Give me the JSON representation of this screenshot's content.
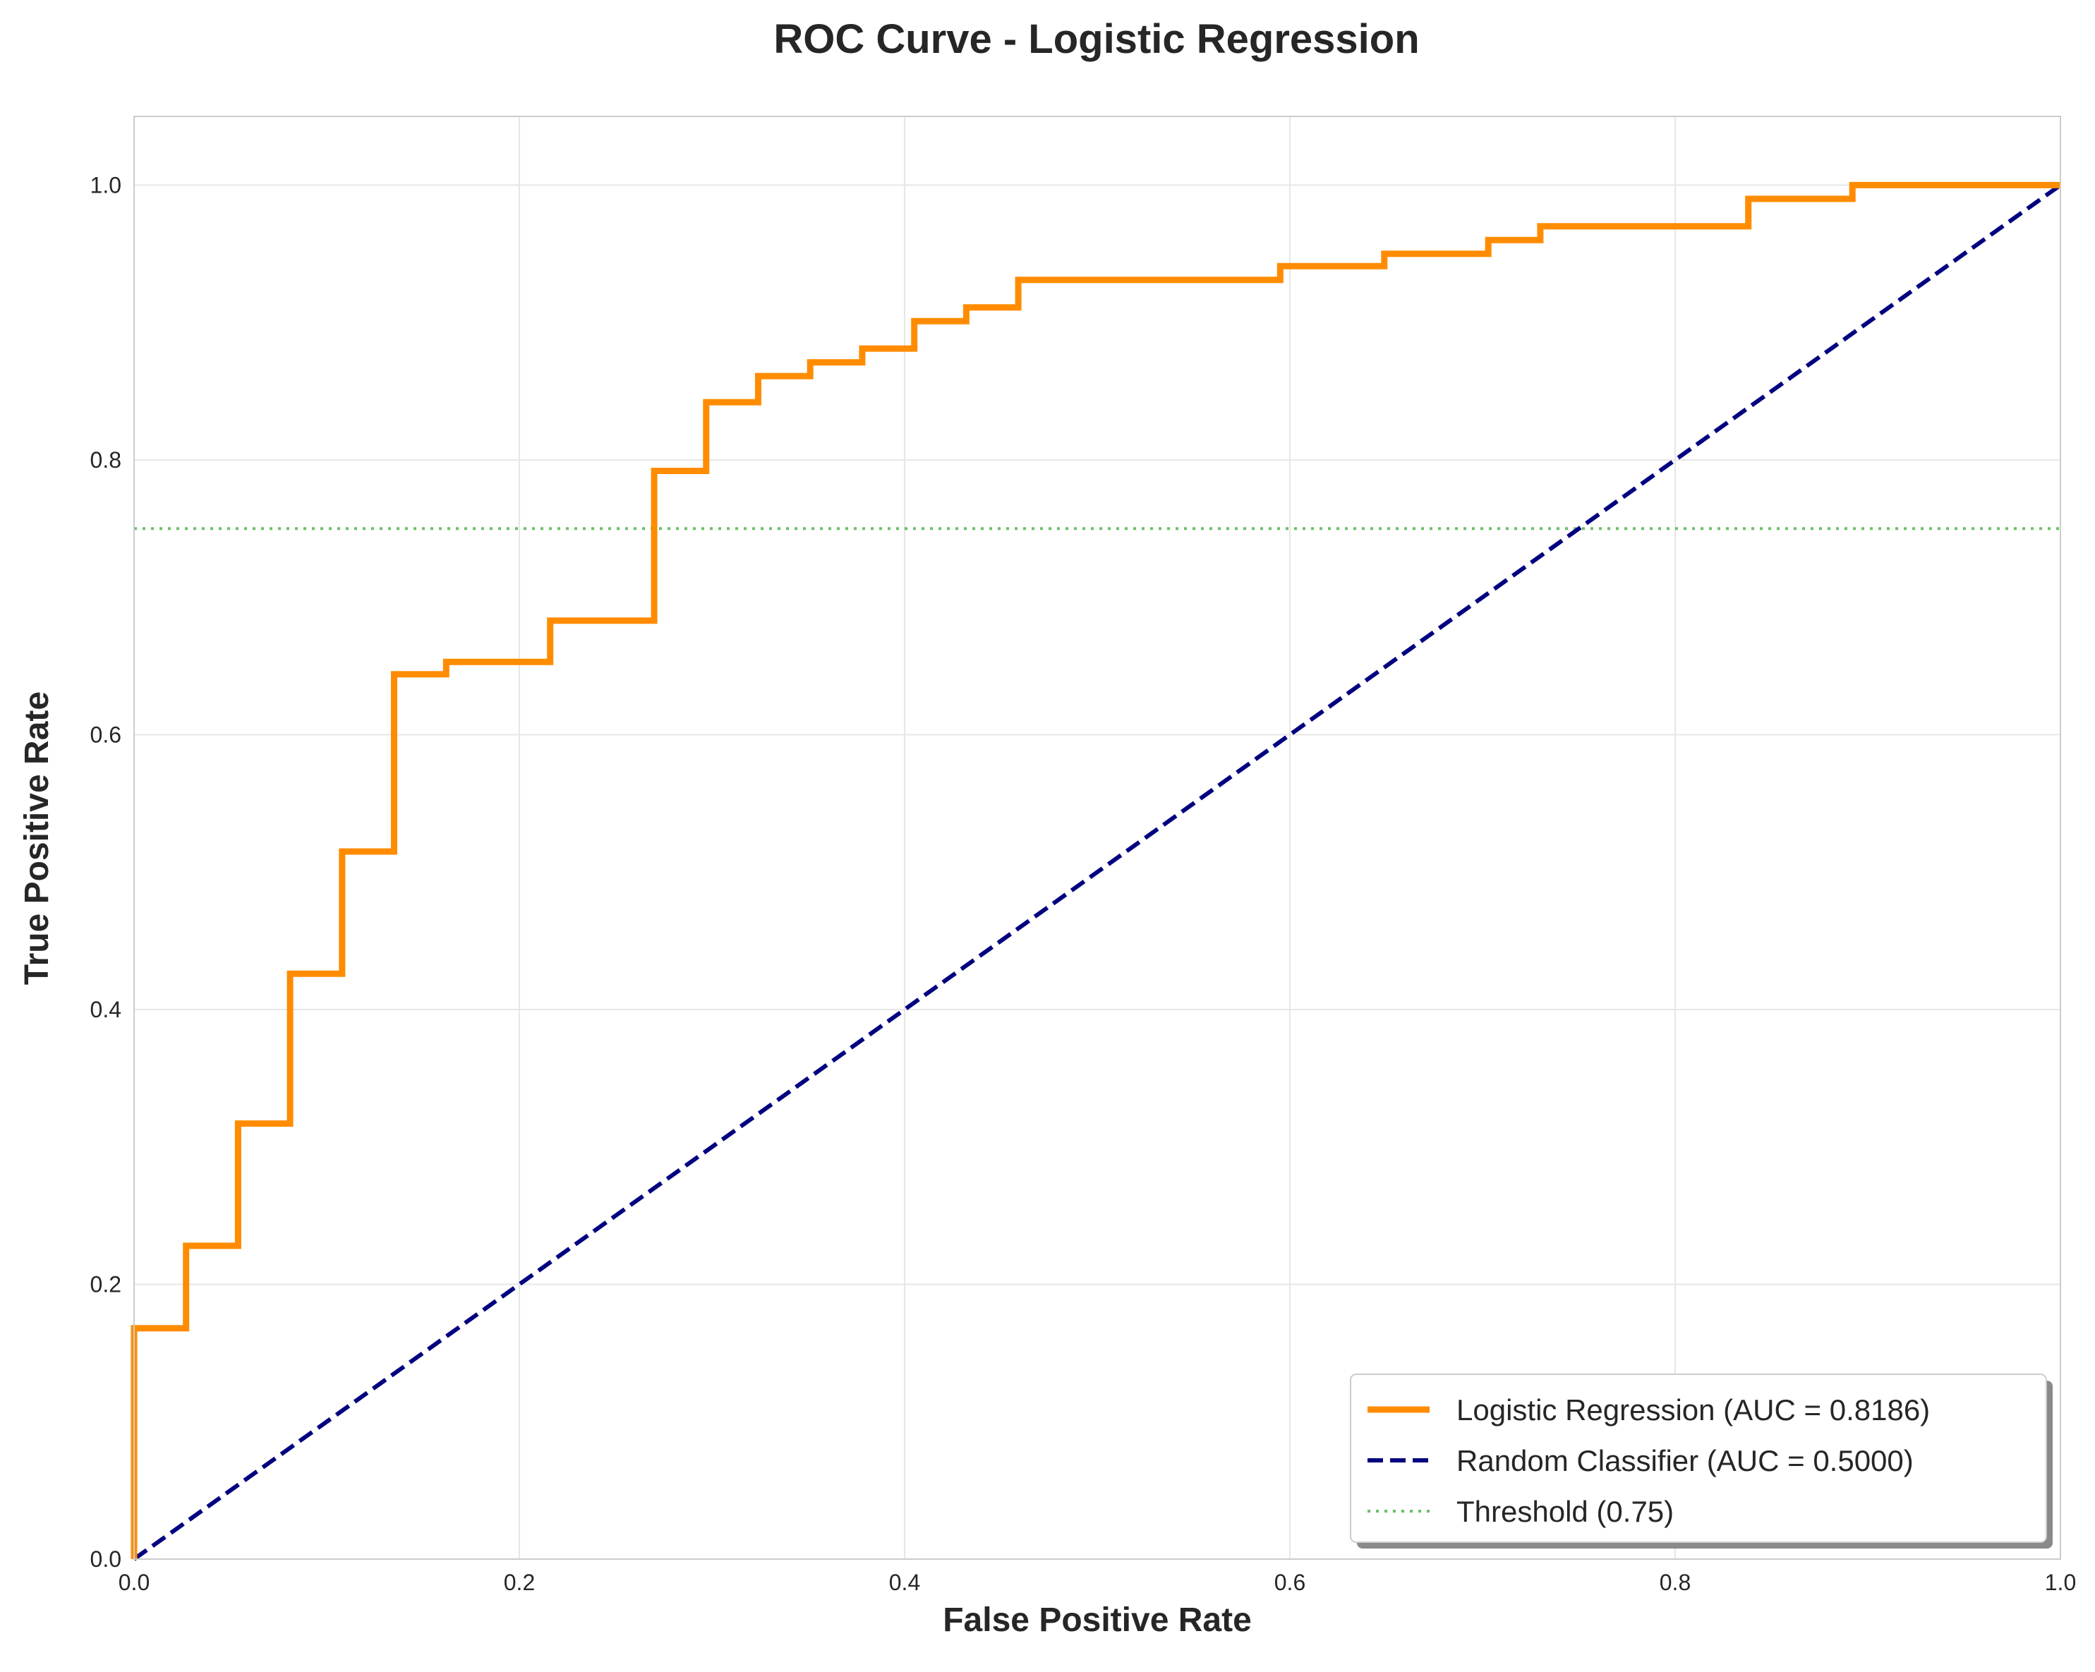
{
  "chart_data": {
    "type": "line",
    "title": "ROC Curve - Logistic Regression",
    "xlabel": "False Positive Rate",
    "ylabel": "True Positive Rate",
    "xlim": [
      0,
      1
    ],
    "ylim": [
      0,
      1.05
    ],
    "x_ticks": [
      "0.0",
      "0.2",
      "0.4",
      "0.6",
      "0.8",
      "1.0"
    ],
    "y_ticks": [
      "0.0",
      "0.2",
      "0.4",
      "0.6",
      "0.8",
      "1.0"
    ],
    "grid": true,
    "legend_position": "lower-right",
    "series": [
      {
        "name": "Logistic Regression (AUC = 0.8186)",
        "color": "#ff8c00",
        "style": "solid",
        "x": [
          0,
          0,
          0.027,
          0.027,
          0.054,
          0.054,
          0.081,
          0.081,
          0.108,
          0.108,
          0.135,
          0.135,
          0.162,
          0.162,
          0.216,
          0.216,
          0.27,
          0.27,
          0.297,
          0.297,
          0.324,
          0.324,
          0.351,
          0.351,
          0.378,
          0.378,
          0.405,
          0.405,
          0.432,
          0.432,
          0.459,
          0.459,
          0.595,
          0.595,
          0.649,
          0.649,
          0.703,
          0.703,
          0.73,
          0.73,
          0.838,
          0.838,
          0.892,
          0.892,
          1.0
        ],
        "y": [
          0,
          0.168,
          0.168,
          0.228,
          0.228,
          0.317,
          0.317,
          0.426,
          0.426,
          0.515,
          0.515,
          0.644,
          0.644,
          0.653,
          0.653,
          0.683,
          0.683,
          0.792,
          0.792,
          0.842,
          0.842,
          0.861,
          0.861,
          0.871,
          0.871,
          0.881,
          0.881,
          0.901,
          0.901,
          0.911,
          0.911,
          0.931,
          0.931,
          0.941,
          0.941,
          0.95,
          0.95,
          0.96,
          0.96,
          0.97,
          0.97,
          0.99,
          0.99,
          1.0,
          1.0
        ]
      },
      {
        "name": "Random Classifier (AUC = 0.5000)",
        "color": "#000080",
        "style": "dashed",
        "x": [
          0,
          1
        ],
        "y": [
          0,
          1
        ]
      },
      {
        "name": "Threshold (0.75)",
        "color": "#6abf69",
        "style": "dotted",
        "x": [
          0,
          1
        ],
        "y": [
          0.75,
          0.75
        ]
      }
    ]
  }
}
